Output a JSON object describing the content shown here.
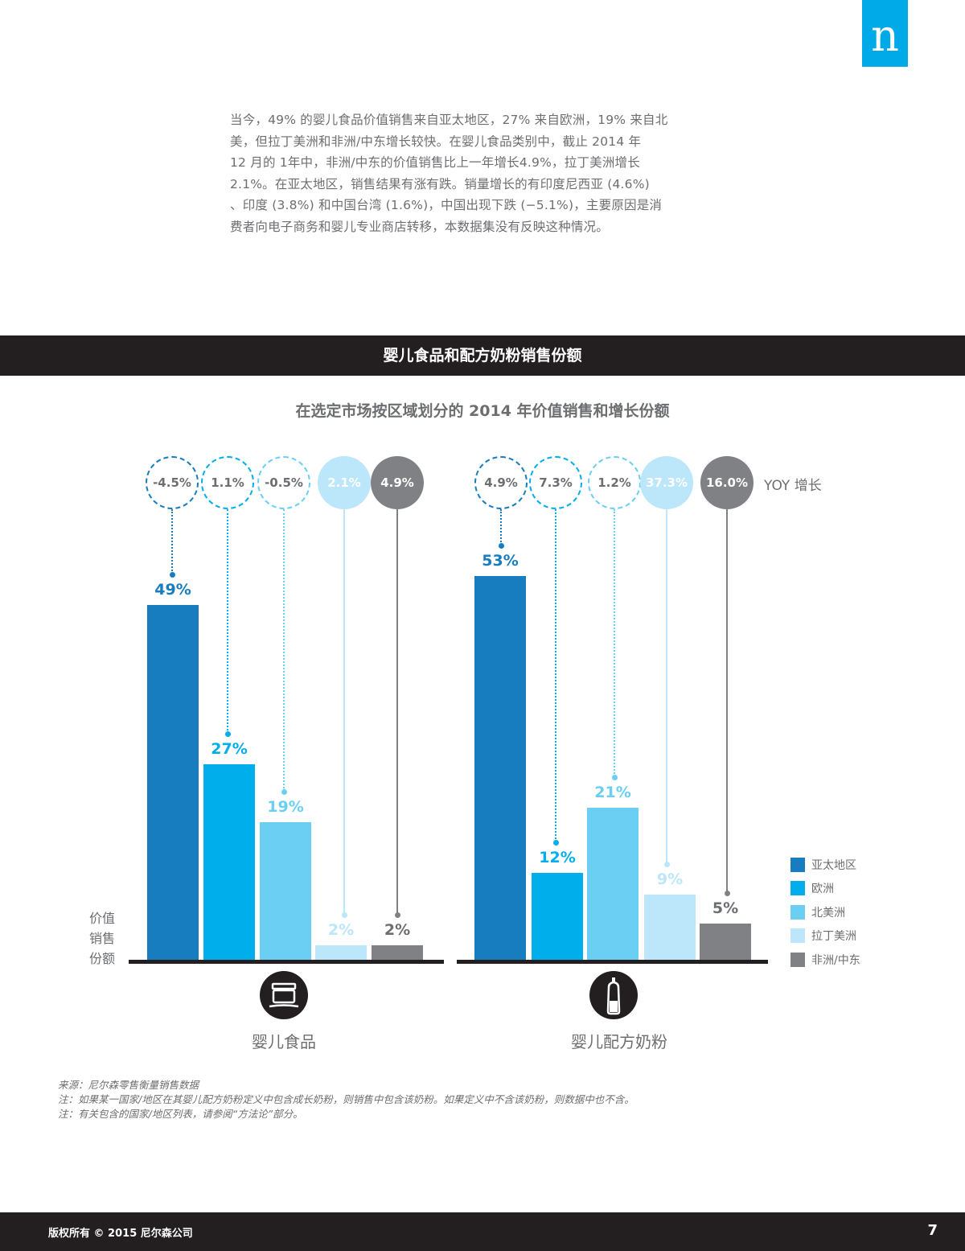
{
  "logo": {
    "glyph": "n",
    "color": "#00a9e7"
  },
  "intro": {
    "lines": [
      "当今，49% 的婴儿食品价值销售来自亚太地区，27% 来自欧洲，19% 来自北",
      "美，但拉丁美洲和非洲/中东增长较快。在婴儿食品类别中，截止 2014 年",
      "12 月的 1年中，非洲/中东的价值销售比上一年增长4.9%，拉丁美洲增长",
      "2.1%。在亚太地区，销售结果有涨有跌。销量增长的有印度尼西亚 (4.6%)",
      "、印度 (3.8%) 和中国台湾 (1.6%)，中国出现下跌 (−5.1%)，主要原因是消",
      "费者向电子商务和婴儿专业商店转移，本数据集没有反映这种情况。"
    ]
  },
  "section_title": "婴儿食品和配方奶粉销售份额",
  "chart_subtitle": "在选定市场按区域划分的 2014 年价值销售和增长份额",
  "yoy_label": "YOY 增长",
  "y_axis_label_lines": [
    "价值",
    "销售",
    "份额"
  ],
  "legend": [
    {
      "label": "亚太地区",
      "color": "#187dbf"
    },
    {
      "label": "欧洲",
      "color": "#00aeeb"
    },
    {
      "label": "北美洲",
      "color": "#6bcff4"
    },
    {
      "label": "拉丁美洲",
      "color": "#bce6f9"
    },
    {
      "label": "非洲/中东",
      "color": "#808184"
    }
  ],
  "chart_data": [
    {
      "type": "bar",
      "title": "婴儿食品",
      "subtitle": "在选定市场按区域划分的 2014 年价值销售和增长份额",
      "categories": [
        "亚太地区",
        "欧洲",
        "北美洲",
        "拉丁美洲",
        "非洲/中东"
      ],
      "series": [
        {
          "name": "价值销售份额",
          "values": [
            49,
            27,
            19,
            2,
            2
          ]
        },
        {
          "name": "YOY 增长",
          "values": [
            -4.5,
            1.1,
            -0.5,
            2.1,
            4.9
          ]
        }
      ],
      "value_labels": [
        "49%",
        "27%",
        "19%",
        "2%",
        "2%"
      ],
      "yoy_labels": [
        "-4.5%",
        "1.1%",
        "-0.5%",
        "2.1%",
        "4.9%"
      ],
      "xlabel": "婴儿食品",
      "ylabel": "价值销售份额",
      "ylim": [
        0,
        60
      ],
      "grid": false,
      "legend_position": "right"
    },
    {
      "type": "bar",
      "title": "婴儿配方奶粉",
      "subtitle": "在选定市场按区域划分的 2014 年价值销售和增长份额",
      "categories": [
        "亚太地区",
        "欧洲",
        "北美洲",
        "拉丁美洲",
        "非洲/中东"
      ],
      "series": [
        {
          "name": "价值销售份额",
          "values": [
            53,
            12,
            21,
            9,
            5
          ]
        },
        {
          "name": "YOY 增长",
          "values": [
            4.9,
            7.3,
            1.2,
            37.3,
            16.0
          ]
        }
      ],
      "value_labels": [
        "53%",
        "12%",
        "21%",
        "9%",
        "5%"
      ],
      "yoy_labels": [
        "4.9%",
        "7.3%",
        "1.2%",
        "37.3%",
        "16.0%"
      ],
      "xlabel": "婴儿配方奶粉",
      "ylabel": "价值销售份额",
      "ylim": [
        0,
        60
      ],
      "grid": false,
      "legend_position": "right"
    }
  ],
  "notes": [
    "来源：尼尔森零售衡量销售数据",
    "注：如果某一国家/地区在其婴儿配方奶粉定义中包含成长奶粉，则销售中包含该奶粉。如果定义中不含该奶粉，则数据中也不含。",
    "注：有关包含的国家/地区列表，请参阅“方法论”部分。"
  ],
  "footer": {
    "copyright": "版权所有 © 2015 尼尔森公司",
    "page_number": "7"
  }
}
